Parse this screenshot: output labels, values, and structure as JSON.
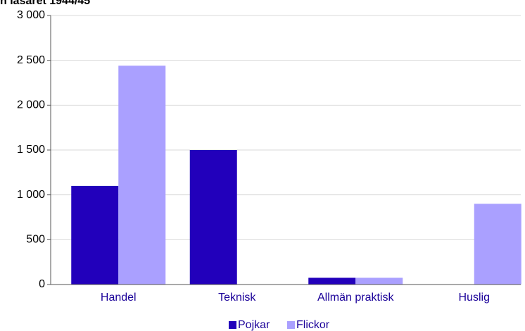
{
  "chart_data": {
    "type": "bar",
    "title": "n läsåret 1944/45",
    "categories": [
      "Handel",
      "Teknisk",
      "Allmän praktisk",
      "Huslig"
    ],
    "series": [
      {
        "name": "Pojkar",
        "color": "#2200bb",
        "values": [
          1100,
          1500,
          75,
          0
        ]
      },
      {
        "name": "Flickor",
        "color": "#aaa0ff",
        "values": [
          2440,
          0,
          75,
          900
        ]
      }
    ],
    "ylim": [
      0,
      3000
    ],
    "yticks": [
      0,
      500,
      {
        "value": 1000,
        "label": "1 000"
      },
      {
        "value": 1500,
        "label": "1 500"
      },
      {
        "value": 2000,
        "label": "2 000"
      },
      {
        "value": 2500,
        "label": "2 500"
      },
      {
        "value": 3000,
        "label": "3 000"
      }
    ],
    "grid": true,
    "legend": "bottom"
  }
}
